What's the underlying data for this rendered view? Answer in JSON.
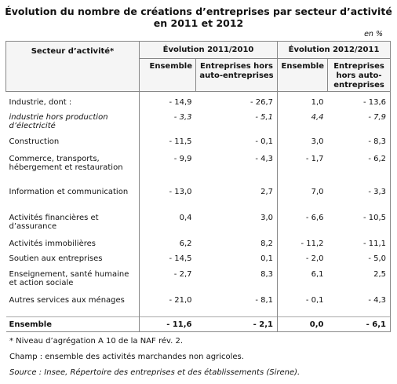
{
  "title": "Évolution du nombre de créations d’entreprises par secteur d’activité en 2011 et 2012",
  "unit": "en %",
  "table": {
    "header": {
      "sector": "Secteur d’activité*",
      "group1": "Évolution 2011/2010",
      "group2": "Évolution 2012/2011",
      "ensemble": "Ensemble",
      "hors_auto": "Entreprises hors auto-entreprises"
    },
    "rows": [
      {
        "label": "Industrie, dont :",
        "v1": "- 14,9",
        "v2": "- 26,7",
        "v3": "1,0",
        "v4": "- 13,6"
      },
      {
        "label": "industrie hors production d’électricité",
        "v1": "- 3,3",
        "v2": "- 5,1",
        "v3": "4,4",
        "v4": "- 7,9"
      },
      {
        "label": "Construction",
        "v1": "- 11,5",
        "v2": "- 0,1",
        "v3": "3,0",
        "v4": "- 8,3"
      },
      {
        "label": "Commerce, transports, hébergement et restauration",
        "v1": "- 9,9",
        "v2": "- 4,3",
        "v3": "- 1,7",
        "v4": "- 6,2"
      },
      {
        "label": "Information et communication",
        "v1": "- 13,0",
        "v2": "2,7",
        "v3": "7,0",
        "v4": "- 3,3"
      },
      {
        "label": "Activités financières et d’assurance",
        "v1": "0,4",
        "v2": "3,0",
        "v3": "- 6,6",
        "v4": "- 10,5"
      },
      {
        "label": "Activités immobilières",
        "v1": "6,2",
        "v2": "8,2",
        "v3": "- 11,2",
        "v4": "- 11,1"
      },
      {
        "label": "Soutien aux entreprises",
        "v1": "- 14,5",
        "v2": "0,1",
        "v3": "- 2,0",
        "v4": "- 5,0"
      },
      {
        "label": "Enseignement, santé humaine et action sociale",
        "v1": "- 2,7",
        "v2": "8,3",
        "v3": "6,1",
        "v4": "2,5"
      },
      {
        "label": "Autres services aux ménages",
        "v1": "- 21,0",
        "v2": "- 8,1",
        "v3": "- 0,1",
        "v4": "- 4,3"
      },
      {
        "label": "Ensemble",
        "v1": "- 11,6",
        "v2": "- 2,1",
        "v3": "0,0",
        "v4": "- 6,1"
      }
    ]
  },
  "notes": {
    "footnote": "* Niveau d’agrégation A 10 de la NAF rév. 2.",
    "champ": "Champ : ensemble des activités marchandes non agricoles.",
    "source": "Source : Insee, Répertoire des entreprises et des établissements (Sirene)."
  }
}
